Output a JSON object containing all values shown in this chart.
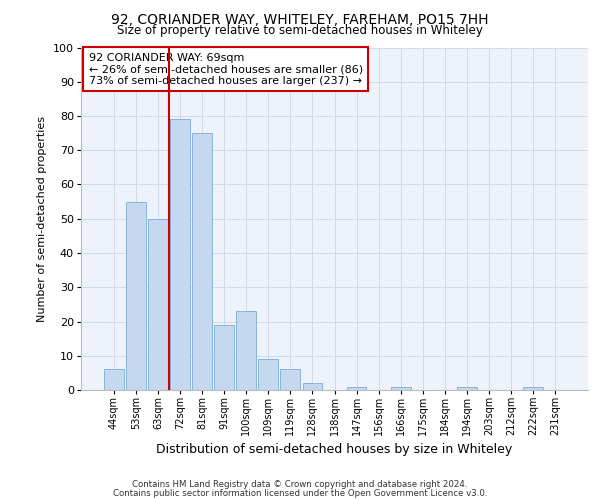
{
  "title1": "92, CORIANDER WAY, WHITELEY, FAREHAM, PO15 7HH",
  "title2": "Size of property relative to semi-detached houses in Whiteley",
  "xlabel": "Distribution of semi-detached houses by size in Whiteley",
  "ylabel": "Number of semi-detached properties",
  "categories": [
    "44sqm",
    "53sqm",
    "63sqm",
    "72sqm",
    "81sqm",
    "91sqm",
    "100sqm",
    "109sqm",
    "119sqm",
    "128sqm",
    "138sqm",
    "147sqm",
    "156sqm",
    "166sqm",
    "175sqm",
    "184sqm",
    "194sqm",
    "203sqm",
    "212sqm",
    "222sqm",
    "231sqm"
  ],
  "values": [
    6,
    55,
    50,
    79,
    75,
    19,
    23,
    9,
    6,
    2,
    0,
    1,
    0,
    1,
    0,
    0,
    1,
    0,
    0,
    1,
    0
  ],
  "bar_color": "#c5d8f0",
  "bar_edge_color": "#7aadd4",
  "vline_index": 3,
  "vline_color": "#cc0000",
  "annotation_text": "92 CORIANDER WAY: 69sqm\n← 26% of semi-detached houses are smaller (86)\n73% of semi-detached houses are larger (237) →",
  "annotation_box_color": "#ffffff",
  "annotation_box_edge": "#cc0000",
  "ylim": [
    0,
    100
  ],
  "yticks": [
    0,
    10,
    20,
    30,
    40,
    50,
    60,
    70,
    80,
    90,
    100
  ],
  "footer1": "Contains HM Land Registry data © Crown copyright and database right 2024.",
  "footer2": "Contains public sector information licensed under the Open Government Licence v3.0.",
  "grid_color": "#d0daea",
  "bg_color": "#eef2fa"
}
